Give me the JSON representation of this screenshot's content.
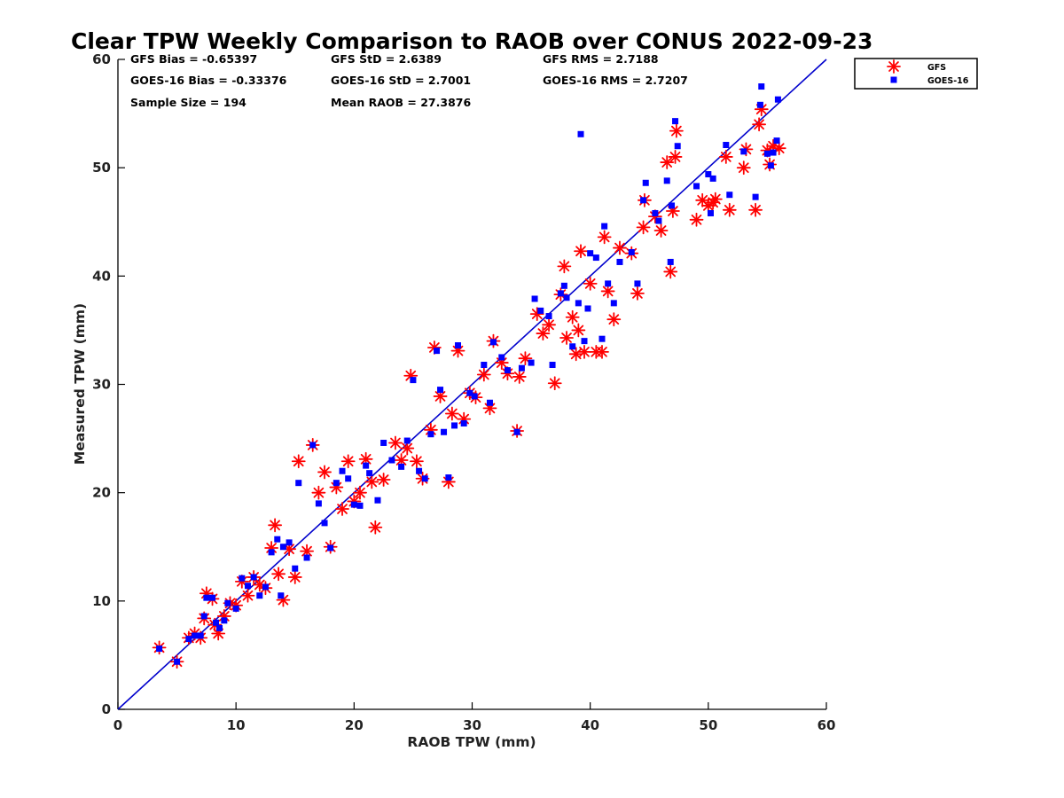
{
  "chart_data": {
    "type": "scatter",
    "title": "Clear TPW Weekly Comparison to RAOB over CONUS 2022-09-23",
    "xlabel": "RAOB TPW (mm)",
    "ylabel": "Measured TPW (mm)",
    "xlim": [
      0,
      60
    ],
    "ylim": [
      0,
      60
    ],
    "xticks": [
      "0",
      "10",
      "20",
      "30",
      "40",
      "50",
      "60"
    ],
    "yticks": [
      "0",
      "10",
      "20",
      "30",
      "40",
      "50",
      "60"
    ],
    "grid": false,
    "legend_position": "outside-top-right",
    "reference_line": {
      "from": [
        0,
        0
      ],
      "to": [
        60,
        60
      ],
      "color": "#0000cc"
    },
    "stats": {
      "gfs_bias": "GFS Bias = -0.65397",
      "gfs_std": "GFS StD = 2.6389",
      "gfs_rms": "GFS RMS = 2.7188",
      "goes_bias": "GOES-16 Bias = -0.33376",
      "goes_std": "GOES-16 StD = 2.7001",
      "goes_rms": "GOES-16 RMS = 2.7207",
      "sample_size": "Sample Size = 194",
      "mean_raob": "Mean RAOB = 27.3876"
    },
    "series": [
      {
        "name": "GFS",
        "marker": "asterisk",
        "color": "#ff0000",
        "points": [
          [
            3.5,
            5.7
          ],
          [
            5,
            4.4
          ],
          [
            6,
            6.6
          ],
          [
            6.5,
            7
          ],
          [
            7,
            6.6
          ],
          [
            7.3,
            8.4
          ],
          [
            7.5,
            10.7
          ],
          [
            8,
            10.2
          ],
          [
            8.2,
            7.8
          ],
          [
            8.5,
            7
          ],
          [
            9,
            8.6
          ],
          [
            9.5,
            9.8
          ],
          [
            10,
            9.6
          ],
          [
            10.5,
            11.8
          ],
          [
            11,
            10.5
          ],
          [
            11.5,
            12.2
          ],
          [
            12,
            11.5
          ],
          [
            12.5,
            11.2
          ],
          [
            13,
            14.9
          ],
          [
            13.3,
            17
          ],
          [
            13.6,
            12.5
          ],
          [
            14,
            10.1
          ],
          [
            14.5,
            14.8
          ],
          [
            15,
            12.2
          ],
          [
            15.3,
            22.9
          ],
          [
            16,
            14.6
          ],
          [
            16.5,
            24.4
          ],
          [
            17,
            20
          ],
          [
            17.5,
            21.9
          ],
          [
            18,
            15
          ],
          [
            18.5,
            20.5
          ],
          [
            19,
            18.5
          ],
          [
            19.5,
            22.9
          ],
          [
            20,
            19.2
          ],
          [
            20.5,
            20
          ],
          [
            21,
            23.1
          ],
          [
            21.5,
            21
          ],
          [
            21.8,
            16.8
          ],
          [
            22.5,
            21.2
          ],
          [
            23.5,
            24.6
          ],
          [
            24,
            23
          ],
          [
            24.5,
            24.1
          ],
          [
            24.8,
            30.8
          ],
          [
            25.3,
            22.9
          ],
          [
            25.8,
            21.3
          ],
          [
            26.5,
            25.8
          ],
          [
            26.8,
            33.4
          ],
          [
            27.3,
            28.9
          ],
          [
            28,
            21
          ],
          [
            28.3,
            27.3
          ],
          [
            28.8,
            33.1
          ],
          [
            29.3,
            26.8
          ],
          [
            29.8,
            29.2
          ],
          [
            30.3,
            28.8
          ],
          [
            31,
            30.9
          ],
          [
            31.5,
            27.8
          ],
          [
            31.8,
            34
          ],
          [
            32.5,
            32
          ],
          [
            33,
            31
          ],
          [
            33.8,
            25.7
          ],
          [
            34,
            30.7
          ],
          [
            34.5,
            32.4
          ],
          [
            35.5,
            36.5
          ],
          [
            36,
            34.7
          ],
          [
            36.5,
            35.5
          ],
          [
            37,
            30.1
          ],
          [
            37.5,
            38.3
          ],
          [
            37.8,
            40.9
          ],
          [
            38,
            34.3
          ],
          [
            38.5,
            36.2
          ],
          [
            38.8,
            32.8
          ],
          [
            39,
            35
          ],
          [
            39.2,
            42.3
          ],
          [
            39.5,
            33
          ],
          [
            40,
            39.3
          ],
          [
            40.5,
            33
          ],
          [
            41,
            33
          ],
          [
            41.2,
            43.6
          ],
          [
            41.5,
            38.6
          ],
          [
            42,
            36
          ],
          [
            42.5,
            42.6
          ],
          [
            43.5,
            42.1
          ],
          [
            44,
            38.4
          ],
          [
            44.5,
            44.5
          ],
          [
            44.6,
            47
          ],
          [
            45.5,
            45.5
          ],
          [
            46,
            44.2
          ],
          [
            46.5,
            50.5
          ],
          [
            46.8,
            40.4
          ],
          [
            47,
            46
          ],
          [
            47.2,
            51
          ],
          [
            47.3,
            53.4
          ],
          [
            49,
            45.2
          ],
          [
            49.5,
            47
          ],
          [
            50,
            46.5
          ],
          [
            50.4,
            46.8
          ],
          [
            50.6,
            47.1
          ],
          [
            51.5,
            51
          ],
          [
            51.8,
            46.1
          ],
          [
            53,
            50
          ],
          [
            53.2,
            51.7
          ],
          [
            54,
            46.1
          ],
          [
            54.3,
            54
          ],
          [
            54.5,
            55.4
          ],
          [
            55,
            51.6
          ],
          [
            55.2,
            50.3
          ],
          [
            55.5,
            52
          ],
          [
            56,
            51.8
          ]
        ]
      },
      {
        "name": "GOES-16",
        "marker": "square",
        "color": "#0000ff",
        "points": [
          [
            3.5,
            5.6
          ],
          [
            5,
            4.4
          ],
          [
            6,
            6.5
          ],
          [
            6.5,
            6.8
          ],
          [
            7,
            6.8
          ],
          [
            7.3,
            8.6
          ],
          [
            7.5,
            10.3
          ],
          [
            8,
            10.3
          ],
          [
            8.3,
            8
          ],
          [
            8.6,
            7.5
          ],
          [
            9,
            8.2
          ],
          [
            9.3,
            9.8
          ],
          [
            10,
            9.3
          ],
          [
            10.5,
            12.1
          ],
          [
            11,
            11.4
          ],
          [
            11.5,
            12.2
          ],
          [
            12,
            10.5
          ],
          [
            12.5,
            11.3
          ],
          [
            13,
            14.5
          ],
          [
            13.5,
            15.7
          ],
          [
            13.8,
            10.5
          ],
          [
            14,
            15
          ],
          [
            14.5,
            15.4
          ],
          [
            15,
            13
          ],
          [
            15.3,
            20.9
          ],
          [
            16,
            14
          ],
          [
            16.5,
            24.4
          ],
          [
            17,
            19
          ],
          [
            17.5,
            17.2
          ],
          [
            18,
            14.9
          ],
          [
            18.5,
            20.9
          ],
          [
            19,
            22
          ],
          [
            19.5,
            21.3
          ],
          [
            20,
            18.9
          ],
          [
            20.5,
            18.8
          ],
          [
            21,
            22.5
          ],
          [
            21.3,
            21.8
          ],
          [
            22,
            19.3
          ],
          [
            22.5,
            24.6
          ],
          [
            23.2,
            23
          ],
          [
            24,
            22.4
          ],
          [
            24.5,
            24.8
          ],
          [
            25,
            30.4
          ],
          [
            25.5,
            22
          ],
          [
            26,
            21.3
          ],
          [
            26.5,
            25.4
          ],
          [
            27,
            33.1
          ],
          [
            27.3,
            29.5
          ],
          [
            27.6,
            25.6
          ],
          [
            28,
            21.4
          ],
          [
            28.5,
            26.2
          ],
          [
            28.8,
            33.6
          ],
          [
            29.3,
            26.4
          ],
          [
            29.8,
            29.2
          ],
          [
            30.2,
            28.9
          ],
          [
            31,
            31.8
          ],
          [
            31.5,
            28.3
          ],
          [
            31.8,
            33.9
          ],
          [
            32.5,
            32.5
          ],
          [
            33,
            31.3
          ],
          [
            33.8,
            25.6
          ],
          [
            34.2,
            31.5
          ],
          [
            35,
            32
          ],
          [
            35.3,
            37.9
          ],
          [
            35.8,
            36.8
          ],
          [
            36.5,
            36.3
          ],
          [
            36.8,
            31.8
          ],
          [
            37.5,
            38.4
          ],
          [
            37.8,
            39.1
          ],
          [
            38,
            38
          ],
          [
            38.5,
            33.5
          ],
          [
            39,
            37.5
          ],
          [
            39.2,
            53.1
          ],
          [
            39.5,
            34
          ],
          [
            39.8,
            37
          ],
          [
            40,
            42.1
          ],
          [
            40.5,
            41.7
          ],
          [
            41,
            34.2
          ],
          [
            41.2,
            44.6
          ],
          [
            41.5,
            39.3
          ],
          [
            42,
            37.5
          ],
          [
            42.5,
            41.3
          ],
          [
            43.5,
            42.2
          ],
          [
            44,
            39.3
          ],
          [
            44.5,
            47
          ],
          [
            44.7,
            48.6
          ],
          [
            45.5,
            45.8
          ],
          [
            45.8,
            45.1
          ],
          [
            46.5,
            48.8
          ],
          [
            46.8,
            41.3
          ],
          [
            46.9,
            46.5
          ],
          [
            47.2,
            54.3
          ],
          [
            47.4,
            52
          ],
          [
            49,
            48.3
          ],
          [
            50,
            49.4
          ],
          [
            50.4,
            49
          ],
          [
            50.2,
            45.8
          ],
          [
            51.5,
            52.1
          ],
          [
            51.8,
            47.5
          ],
          [
            53,
            51.5
          ],
          [
            54,
            47.3
          ],
          [
            54.4,
            55.8
          ],
          [
            54.5,
            57.5
          ],
          [
            55,
            51.3
          ],
          [
            55.3,
            50.2
          ],
          [
            55.5,
            51.4
          ],
          [
            55.8,
            52.5
          ],
          [
            55.9,
            56.3
          ]
        ]
      }
    ]
  }
}
